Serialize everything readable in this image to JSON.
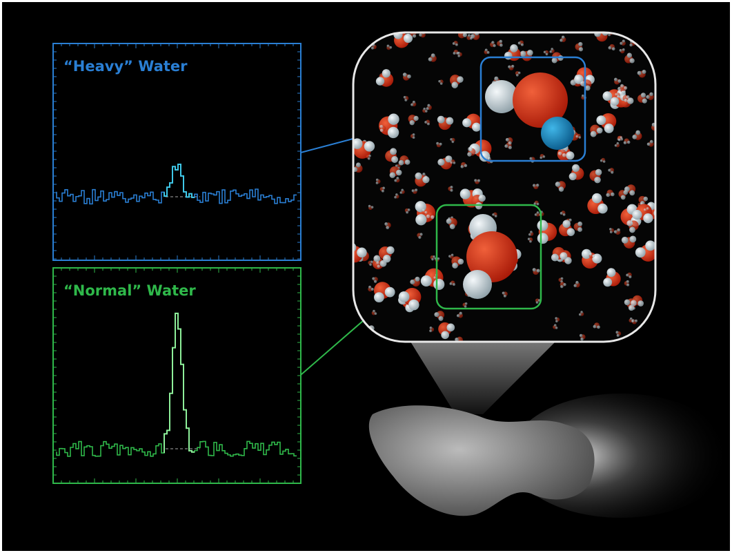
{
  "panels": [
    {
      "label": "“Heavy” Water"
    },
    {
      "label": "“Normal” Water"
    }
  ]
}
